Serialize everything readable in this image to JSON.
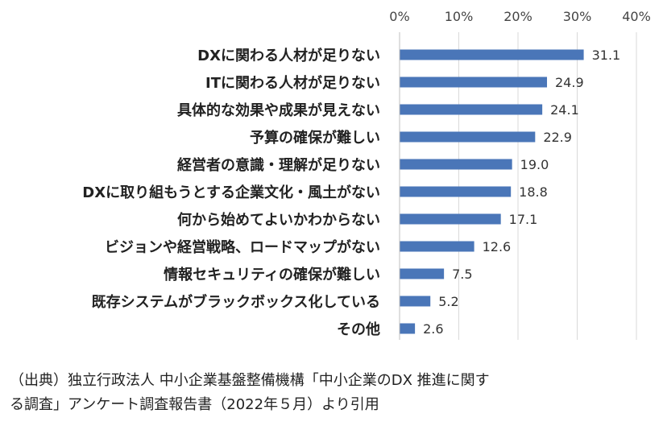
{
  "chart_data": {
    "type": "bar",
    "orientation": "horizontal",
    "categories": [
      "DXに関わる人材が足りない",
      "ITに関わる人材が足りない",
      "具体的な効果や成果が見えない",
      "予算の確保が難しい",
      "経営者の意識・理解が足りない",
      "DXに取り組もうとする企業文化・風土がない",
      "何から始めてよいかわからない",
      "ビジョンや経営戦略、ロードマップがない",
      "情報セキュリティの確保が難しい",
      "既存システムがブラックボックス化している",
      "その他"
    ],
    "values": [
      31.1,
      24.9,
      24.1,
      22.9,
      19.0,
      18.8,
      17.1,
      12.6,
      7.5,
      5.2,
      2.6
    ],
    "value_labels": [
      "31.1",
      "24.9",
      "24.1",
      "22.9",
      "19.0",
      "18.8",
      "17.1",
      "12.6",
      "7.5",
      "5.2",
      "2.6"
    ],
    "xlim": [
      0,
      40
    ],
    "xticks": [
      0,
      10,
      20,
      30,
      40
    ],
    "xtick_labels": [
      "0%",
      "10%",
      "20%",
      "30%",
      "40%"
    ],
    "xaxis_position": "top",
    "grid": true,
    "bar_color": "#4a76b8",
    "title": "",
    "xlabel": "",
    "ylabel": ""
  },
  "source": {
    "line1": "（出典）独立行政法人 中小企業基盤整備機構「中小企業のDX 推進に関す",
    "line2": "る調査」アンケート調査報告書（2022年５月）より引用"
  }
}
